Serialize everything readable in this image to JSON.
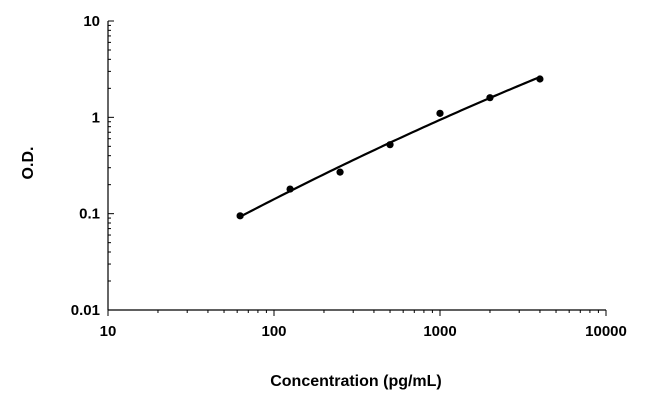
{
  "chart_data": {
    "type": "scatter",
    "title": "",
    "xlabel": "Concentration (pg/mL)",
    "ylabel": "O.D.",
    "xscale": "log",
    "yscale": "log",
    "xlim": [
      10,
      10000
    ],
    "ylim": [
      0.01,
      10
    ],
    "grid": false,
    "x_ticks": [
      10,
      100,
      1000,
      10000
    ],
    "x_tick_labels": [
      "10",
      "100",
      "1000",
      "10000"
    ],
    "y_ticks": [
      0.01,
      0.1,
      1,
      10
    ],
    "y_tick_labels": [
      "0.01",
      "0.1",
      "1",
      "10"
    ],
    "series": [
      {
        "x": [
          62.5,
          125,
          250,
          500,
          1000,
          2000,
          4000
        ],
        "y": [
          0.095,
          0.18,
          0.27,
          0.52,
          1.1,
          1.6,
          2.5
        ],
        "marker": "circle",
        "fit_curve": true
      }
    ]
  }
}
